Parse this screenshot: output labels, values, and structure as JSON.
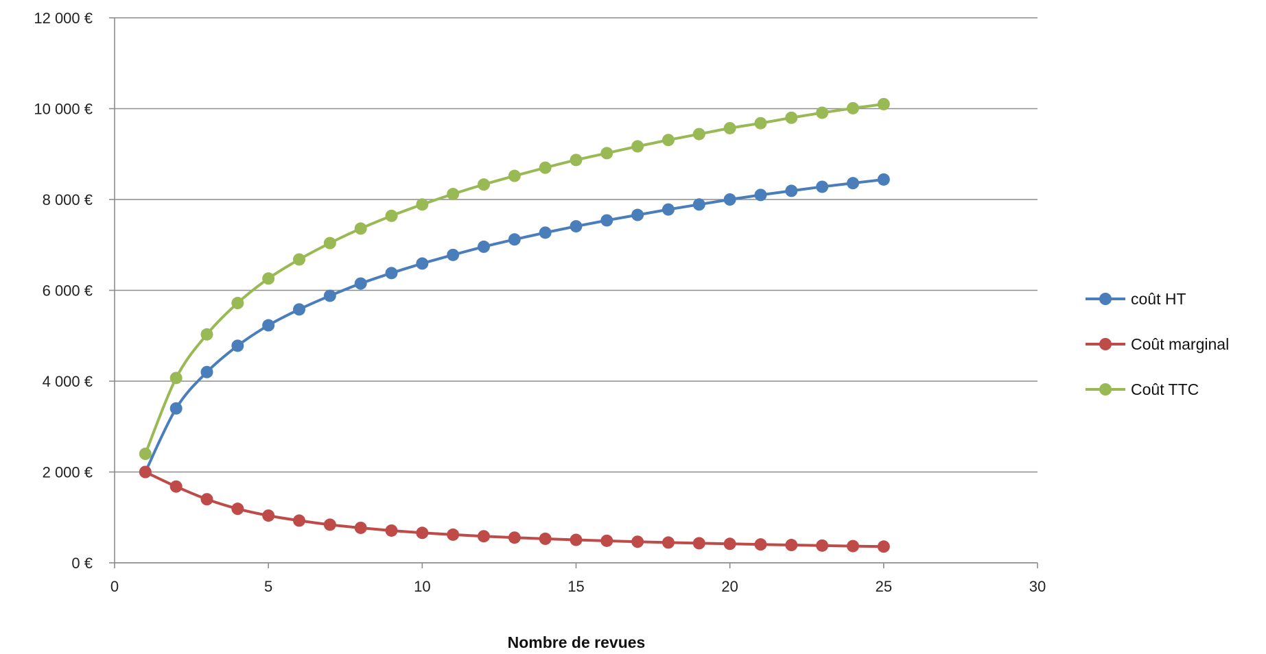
{
  "chart_data": {
    "type": "line",
    "title": "",
    "xlabel": "Nombre de revues",
    "ylabel": "",
    "xlim": [
      0,
      30
    ],
    "ylim": [
      0,
      12000
    ],
    "x_ticks": [
      0,
      5,
      10,
      15,
      20,
      25,
      30
    ],
    "x_tick_labels": [
      "0",
      "5",
      "10",
      "15",
      "20",
      "25",
      "30"
    ],
    "y_ticks": [
      0,
      2000,
      4000,
      6000,
      8000,
      10000,
      12000
    ],
    "y_tick_labels": [
      "0 €",
      "2 000 €",
      "4 000 €",
      "6 000 €",
      "8 000 €",
      "10 000 €",
      "12 000 €"
    ],
    "grid": "horizontal",
    "legend_position": "right",
    "x": [
      1,
      2,
      3,
      4,
      5,
      6,
      7,
      8,
      9,
      10,
      11,
      12,
      13,
      14,
      15,
      16,
      17,
      18,
      19,
      20,
      21,
      22,
      23,
      24,
      25
    ],
    "series": [
      {
        "name": "coût  HT",
        "color": "#4a7ebb",
        "values": [
          2000,
          3400,
          4200,
          4780,
          5230,
          5580,
          5880,
          6150,
          6380,
          6590,
          6780,
          6960,
          7120,
          7270,
          7410,
          7540,
          7660,
          7780,
          7890,
          8000,
          8100,
          8190,
          8280,
          8360,
          8440
        ]
      },
      {
        "name": "Coût marginal",
        "color": "#be4b48",
        "values": [
          2000,
          1680,
          1400,
          1190,
          1040,
          930,
          840,
          770,
          710,
          660,
          620,
          585,
          555,
          530,
          505,
          485,
          465,
          447,
          432,
          418,
          405,
          392,
          380,
          368,
          358
        ]
      },
      {
        "name": "Coût TTC",
        "color": "#98b954",
        "values": [
          2400,
          4070,
          5030,
          5720,
          6260,
          6680,
          7040,
          7360,
          7640,
          7890,
          8120,
          8330,
          8520,
          8700,
          8870,
          9020,
          9170,
          9310,
          9440,
          9570,
          9680,
          9800,
          9910,
          10010,
          10100
        ]
      }
    ]
  }
}
